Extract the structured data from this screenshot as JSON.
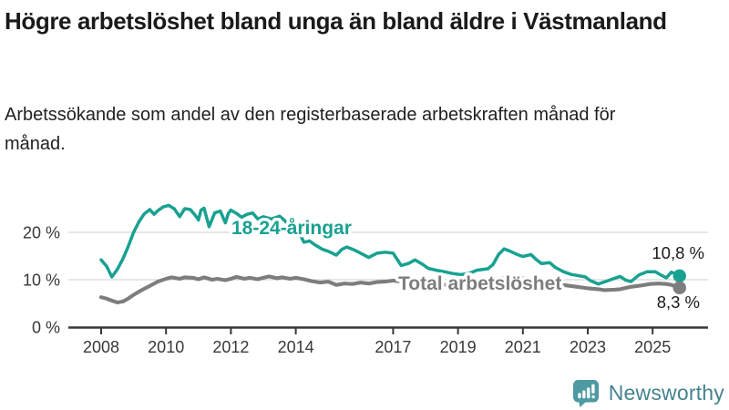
{
  "footer": {
    "logo_text": "Newsworthy"
  },
  "chart_data": {
    "type": "line",
    "title": "Högre arbetslöshet bland unga än bland äldre i Västmanland",
    "subtitle": "Arbetssökande som andel av den registerbaserade arbetskraften månad för månad.",
    "unit": "%",
    "grid": "horizontal",
    "legend_position": "inline-labels",
    "xlim": [
      2007,
      2026.7
    ],
    "ylim": [
      0,
      28
    ],
    "xticks": [
      "2008",
      "2010",
      "2012",
      "2014",
      "2017",
      "2019",
      "2021",
      "2023",
      "2025"
    ],
    "xtick_years": [
      2008,
      2010,
      2012,
      2014,
      2017,
      2019,
      2021,
      2023,
      2025
    ],
    "yticks": [
      {
        "value": 0,
        "label": "0 %"
      },
      {
        "value": 10,
        "label": "10 %"
      },
      {
        "value": 20,
        "label": "20 %"
      }
    ],
    "series": [
      {
        "name": "18-24-åringar",
        "color": "#18a191",
        "end_label": "10,8 %",
        "end_value": 10.8,
        "points": [
          [
            2008.0,
            14.2
          ],
          [
            2008.17,
            12.8
          ],
          [
            2008.33,
            10.6
          ],
          [
            2008.5,
            12.2
          ],
          [
            2008.67,
            14.4
          ],
          [
            2008.83,
            16.9
          ],
          [
            2009.0,
            20.0
          ],
          [
            2009.17,
            22.3
          ],
          [
            2009.33,
            23.9
          ],
          [
            2009.5,
            24.8
          ],
          [
            2009.63,
            23.8
          ],
          [
            2009.75,
            24.6
          ],
          [
            2009.92,
            25.4
          ],
          [
            2010.08,
            25.7
          ],
          [
            2010.25,
            25.0
          ],
          [
            2010.42,
            23.3
          ],
          [
            2010.58,
            25.0
          ],
          [
            2010.75,
            24.8
          ],
          [
            2010.92,
            23.4
          ],
          [
            2011.0,
            22.6
          ],
          [
            2011.08,
            24.7
          ],
          [
            2011.17,
            25.1
          ],
          [
            2011.33,
            21.2
          ],
          [
            2011.5,
            24.1
          ],
          [
            2011.67,
            24.5
          ],
          [
            2011.83,
            22.0
          ],
          [
            2011.92,
            24.0
          ],
          [
            2012.0,
            24.7
          ],
          [
            2012.17,
            24.0
          ],
          [
            2012.33,
            23.2
          ],
          [
            2012.5,
            23.8
          ],
          [
            2012.67,
            24.1
          ],
          [
            2012.83,
            22.8
          ],
          [
            2013.0,
            23.3
          ],
          [
            2013.25,
            22.8
          ],
          [
            2013.5,
            23.4
          ],
          [
            2013.67,
            22.4
          ],
          [
            2013.83,
            21.0
          ],
          [
            2014.0,
            19.8
          ],
          [
            2014.17,
            19.0
          ],
          [
            2014.25,
            17.9
          ],
          [
            2014.42,
            18.2
          ],
          [
            2014.58,
            17.4
          ],
          [
            2014.83,
            16.4
          ],
          [
            2015.0,
            16.0
          ],
          [
            2015.25,
            15.2
          ],
          [
            2015.42,
            16.4
          ],
          [
            2015.58,
            16.9
          ],
          [
            2015.83,
            16.2
          ],
          [
            2016.0,
            15.6
          ],
          [
            2016.25,
            14.7
          ],
          [
            2016.5,
            15.6
          ],
          [
            2016.75,
            15.8
          ],
          [
            2017.0,
            15.6
          ],
          [
            2017.25,
            13.0
          ],
          [
            2017.5,
            13.5
          ],
          [
            2017.67,
            14.2
          ],
          [
            2017.92,
            13.2
          ],
          [
            2018.08,
            12.4
          ],
          [
            2018.33,
            12.0
          ],
          [
            2018.58,
            11.7
          ],
          [
            2018.83,
            11.3
          ],
          [
            2019.08,
            11.1
          ],
          [
            2019.33,
            11.3
          ],
          [
            2019.58,
            12.0
          ],
          [
            2019.92,
            12.3
          ],
          [
            2020.08,
            13.2
          ],
          [
            2020.25,
            15.3
          ],
          [
            2020.42,
            16.5
          ],
          [
            2020.58,
            16.1
          ],
          [
            2020.83,
            15.3
          ],
          [
            2021.0,
            14.9
          ],
          [
            2021.25,
            15.3
          ],
          [
            2021.42,
            14.2
          ],
          [
            2021.58,
            13.4
          ],
          [
            2021.83,
            13.6
          ],
          [
            2022.0,
            12.6
          ],
          [
            2022.25,
            11.7
          ],
          [
            2022.5,
            11.1
          ],
          [
            2022.75,
            10.8
          ],
          [
            2022.92,
            10.6
          ],
          [
            2023.08,
            9.8
          ],
          [
            2023.33,
            9.1
          ],
          [
            2023.58,
            9.7
          ],
          [
            2023.83,
            10.3
          ],
          [
            2024.0,
            10.7
          ],
          [
            2024.17,
            9.9
          ],
          [
            2024.33,
            9.6
          ],
          [
            2024.58,
            11.0
          ],
          [
            2024.83,
            11.7
          ],
          [
            2025.08,
            11.7
          ],
          [
            2025.25,
            11.0
          ],
          [
            2025.42,
            10.4
          ],
          [
            2025.58,
            11.6
          ],
          [
            2025.83,
            10.8
          ]
        ]
      },
      {
        "name": "Total arbetslöshet",
        "color": "#7d7d7d",
        "end_label": "8,3 %",
        "end_value": 8.3,
        "points": [
          [
            2008.0,
            6.3
          ],
          [
            2008.17,
            6.0
          ],
          [
            2008.33,
            5.6
          ],
          [
            2008.5,
            5.2
          ],
          [
            2008.67,
            5.4
          ],
          [
            2008.83,
            6.0
          ],
          [
            2009.0,
            6.8
          ],
          [
            2009.25,
            7.8
          ],
          [
            2009.5,
            8.7
          ],
          [
            2009.75,
            9.6
          ],
          [
            2010.0,
            10.2
          ],
          [
            2010.17,
            10.5
          ],
          [
            2010.42,
            10.2
          ],
          [
            2010.58,
            10.5
          ],
          [
            2010.83,
            10.4
          ],
          [
            2011.0,
            10.1
          ],
          [
            2011.17,
            10.5
          ],
          [
            2011.42,
            10.0
          ],
          [
            2011.58,
            10.2
          ],
          [
            2011.83,
            9.9
          ],
          [
            2012.0,
            10.2
          ],
          [
            2012.17,
            10.6
          ],
          [
            2012.42,
            10.2
          ],
          [
            2012.58,
            10.4
          ],
          [
            2012.83,
            10.1
          ],
          [
            2013.0,
            10.4
          ],
          [
            2013.17,
            10.7
          ],
          [
            2013.42,
            10.3
          ],
          [
            2013.58,
            10.5
          ],
          [
            2013.83,
            10.2
          ],
          [
            2014.0,
            10.4
          ],
          [
            2014.25,
            10.1
          ],
          [
            2014.5,
            9.7
          ],
          [
            2014.75,
            9.4
          ],
          [
            2015.0,
            9.6
          ],
          [
            2015.25,
            8.9
          ],
          [
            2015.5,
            9.2
          ],
          [
            2015.75,
            9.1
          ],
          [
            2016.0,
            9.4
          ],
          [
            2016.25,
            9.2
          ],
          [
            2016.5,
            9.5
          ],
          [
            2016.75,
            9.6
          ],
          [
            2017.0,
            9.8
          ],
          [
            2017.5,
            9.4
          ],
          [
            2018.0,
            9.1
          ],
          [
            2018.5,
            8.9
          ],
          [
            2019.0,
            8.8
          ],
          [
            2019.5,
            8.9
          ],
          [
            2020.0,
            9.3
          ],
          [
            2020.33,
            10.3
          ],
          [
            2020.67,
            10.5
          ],
          [
            2021.0,
            10.3
          ],
          [
            2021.33,
            9.9
          ],
          [
            2021.67,
            9.5
          ],
          [
            2022.0,
            9.1
          ],
          [
            2022.33,
            8.8
          ],
          [
            2022.67,
            8.5
          ],
          [
            2023.0,
            8.2
          ],
          [
            2023.33,
            8.0
          ],
          [
            2023.5,
            7.8
          ],
          [
            2023.83,
            7.9
          ],
          [
            2024.0,
            8.0
          ],
          [
            2024.33,
            8.5
          ],
          [
            2024.67,
            8.8
          ],
          [
            2024.92,
            9.1
          ],
          [
            2025.17,
            9.2
          ],
          [
            2025.42,
            9.1
          ],
          [
            2025.58,
            8.9
          ],
          [
            2025.83,
            8.3
          ]
        ]
      }
    ]
  }
}
